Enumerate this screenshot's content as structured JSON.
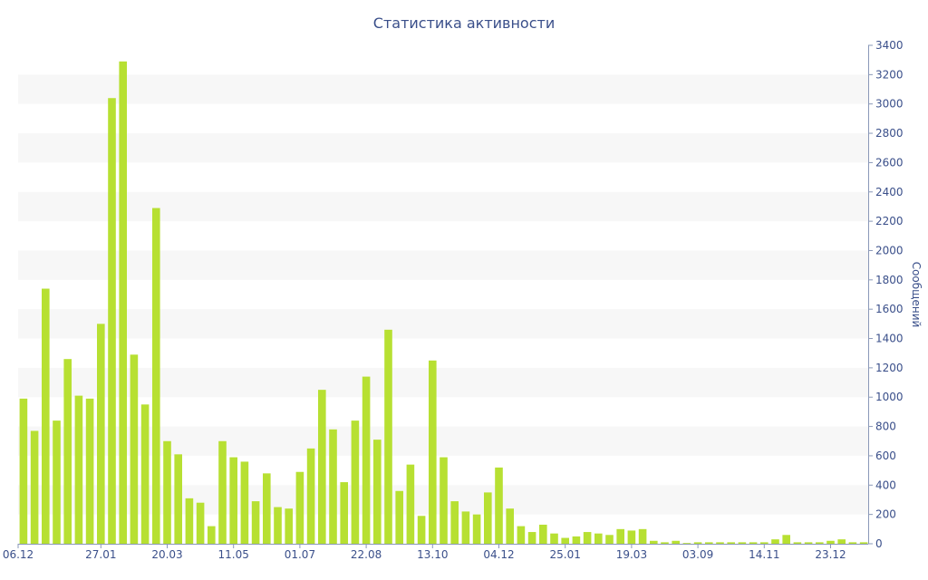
{
  "chart_data": {
    "type": "bar",
    "title": "Статистика активности",
    "xlabel": "",
    "ylabel": "Сообщений",
    "ylim": [
      0,
      3400
    ],
    "y_ticks": [
      0,
      200,
      400,
      600,
      800,
      1000,
      1200,
      1400,
      1600,
      1800,
      2000,
      2200,
      2400,
      2600,
      2800,
      3000,
      3200,
      3400
    ],
    "y_axis_side": "right",
    "x_tick_labels": [
      {
        "label": "06.12",
        "index": 0
      },
      {
        "label": "27.01",
        "index": 7
      },
      {
        "label": "20.03",
        "index": 13
      },
      {
        "label": "11.05",
        "index": 19
      },
      {
        "label": "01.07",
        "index": 25
      },
      {
        "label": "22.08",
        "index": 31
      },
      {
        "label": "13.10",
        "index": 37
      },
      {
        "label": "04.12",
        "index": 43
      },
      {
        "label": "25.01",
        "index": 49
      },
      {
        "label": "19.03",
        "index": 55
      },
      {
        "label": "03.09",
        "index": 61
      },
      {
        "label": "14.11",
        "index": 67
      },
      {
        "label": "23.12",
        "index": 73
      }
    ],
    "values": [
      990,
      770,
      1740,
      840,
      1260,
      1010,
      990,
      1500,
      3040,
      3290,
      1290,
      950,
      2290,
      700,
      610,
      310,
      280,
      120,
      700,
      590,
      560,
      290,
      480,
      250,
      240,
      490,
      650,
      1050,
      780,
      420,
      840,
      1140,
      710,
      1460,
      360,
      540,
      190,
      1250,
      590,
      290,
      220,
      200,
      350,
      520,
      240,
      120,
      80,
      130,
      70,
      40,
      50,
      80,
      70,
      60,
      100,
      90,
      100,
      20,
      10,
      20,
      5,
      10,
      10,
      10,
      10,
      10,
      10,
      10,
      30,
      60,
      10,
      10,
      10,
      20,
      30,
      10,
      10
    ],
    "bar_color": "#b7e032",
    "band_color": "#f7f7f7",
    "text_color": "#3a4f8a",
    "grid": "alternating bands",
    "legend": "none"
  }
}
